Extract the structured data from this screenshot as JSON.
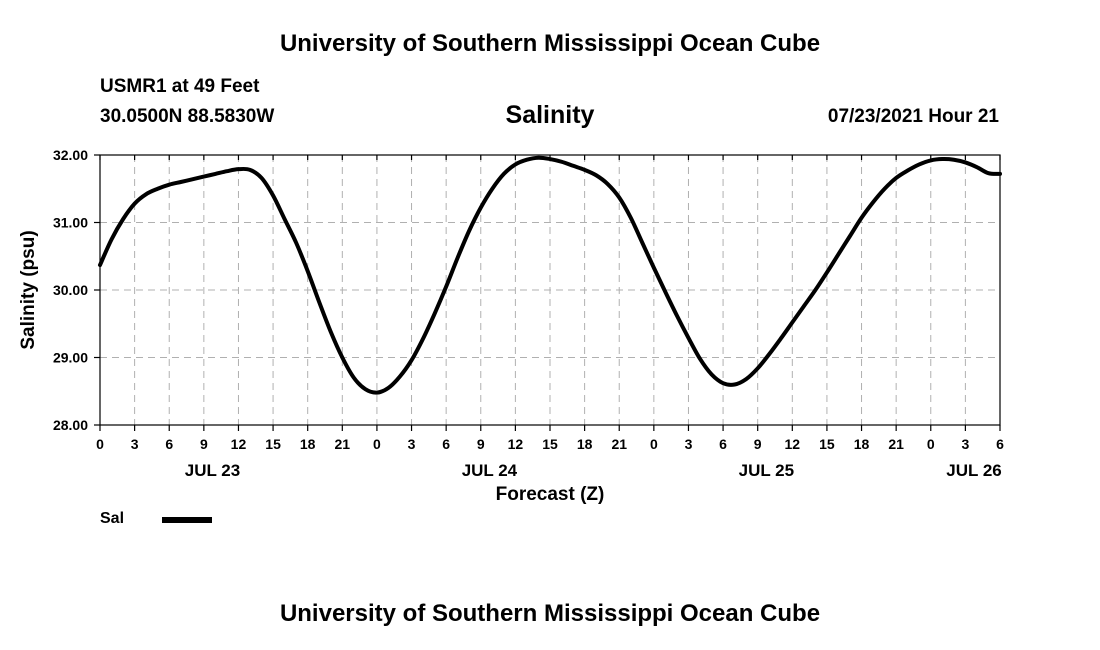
{
  "header": {
    "title": "University of Southern Mississippi Ocean Cube",
    "station": "USMR1 at 49 Feet",
    "coordinates": "30.0500N  88.5830W",
    "variable": "Salinity",
    "datetime": "07/23/2021 Hour 21"
  },
  "footer": {
    "title": "University of Southern Mississippi Ocean Cube"
  },
  "legend": {
    "label": "Sal",
    "color": "#000000"
  },
  "chart_data": {
    "type": "line",
    "title": "Salinity",
    "xlabel": "Forecast (Z)",
    "ylabel": "Salinity (psu)",
    "ylim": [
      28,
      32
    ],
    "xlim": [
      0,
      78
    ],
    "x_unit": "hours from 0Z JUL 23",
    "yticks": [
      "28.00",
      "29.00",
      "30.00",
      "31.00",
      "32.00"
    ],
    "yticks_values": [
      28,
      29,
      30,
      31,
      32
    ],
    "xticks": [
      "0",
      "3",
      "6",
      "9",
      "12",
      "15",
      "18",
      "21",
      "0",
      "3",
      "6",
      "9",
      "12",
      "15",
      "18",
      "21",
      "0",
      "3",
      "6",
      "9",
      "12",
      "15",
      "18",
      "21",
      "0",
      "3",
      "6"
    ],
    "date_labels": [
      {
        "label": "JUL 23",
        "x": 9.75
      },
      {
        "label": "JUL 24",
        "x": 33.75
      },
      {
        "label": "JUL 25",
        "x": 57.75
      },
      {
        "label": "JUL 26",
        "x": 75.75
      }
    ],
    "grid": true,
    "legend_position": "bottom-left",
    "series": [
      {
        "name": "Sal",
        "color": "#000000",
        "x": [
          0,
          1,
          2,
          3,
          4,
          5,
          6,
          7,
          8,
          9,
          10,
          11,
          12,
          13,
          14,
          15,
          16,
          17,
          18,
          19,
          20,
          21,
          22,
          23,
          24,
          25,
          26,
          27,
          28,
          29,
          30,
          31,
          32,
          33,
          34,
          35,
          36,
          37,
          38,
          39,
          40,
          41,
          42,
          43,
          44,
          45,
          46,
          47,
          48,
          49,
          50,
          51,
          52,
          53,
          54,
          55,
          56,
          57,
          58,
          59,
          60,
          61,
          62,
          63,
          64,
          65,
          66,
          67,
          68,
          69,
          70,
          71,
          72,
          73,
          74,
          75,
          76,
          77,
          78
        ],
        "values": [
          30.37,
          30.75,
          31.05,
          31.28,
          31.42,
          31.5,
          31.56,
          31.6,
          31.64,
          31.68,
          31.72,
          31.76,
          31.79,
          31.78,
          31.66,
          31.4,
          31.05,
          30.7,
          30.28,
          29.82,
          29.38,
          29.0,
          28.7,
          28.53,
          28.48,
          28.55,
          28.72,
          28.96,
          29.28,
          29.65,
          30.05,
          30.48,
          30.88,
          31.22,
          31.5,
          31.72,
          31.86,
          31.93,
          31.96,
          31.94,
          31.9,
          31.84,
          31.78,
          31.7,
          31.57,
          31.37,
          31.07,
          30.7,
          30.33,
          29.97,
          29.62,
          29.29,
          28.98,
          28.75,
          28.62,
          28.6,
          28.68,
          28.84,
          29.05,
          29.28,
          29.52,
          29.76,
          30.0,
          30.26,
          30.53,
          30.8,
          31.07,
          31.3,
          31.5,
          31.66,
          31.77,
          31.86,
          31.92,
          31.94,
          31.93,
          31.89,
          31.82,
          31.73,
          31.72
        ]
      }
    ]
  }
}
